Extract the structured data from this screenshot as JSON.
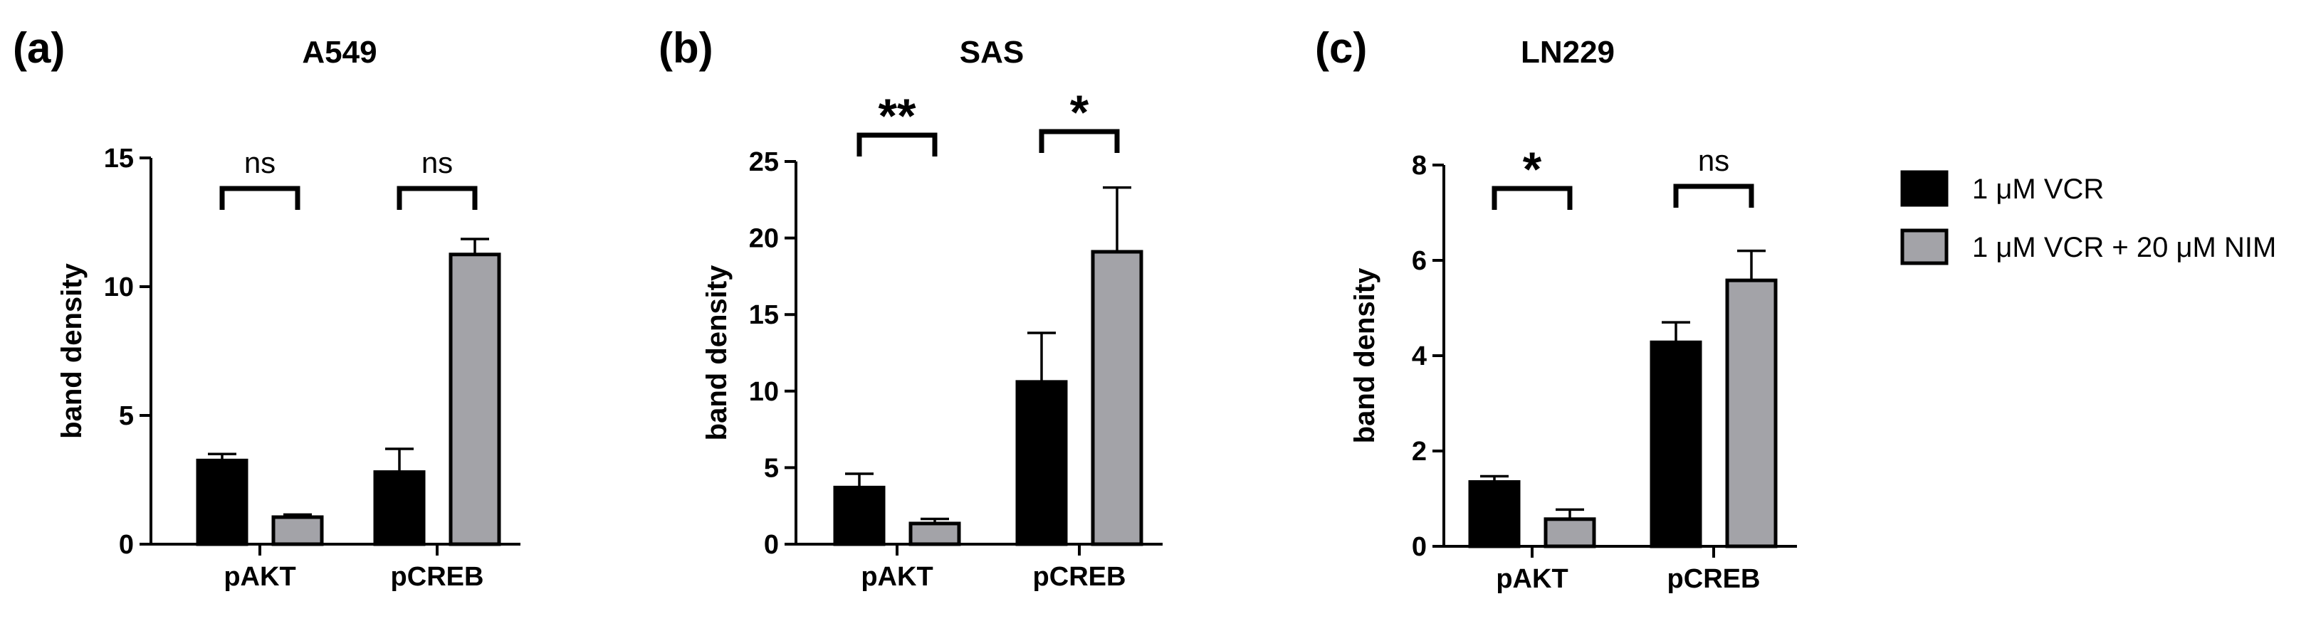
{
  "legend": [
    {
      "label": "1 μM VCR",
      "color": "#000000"
    },
    {
      "label": "1 μM VCR + 20 μM NIM",
      "color": "#a3a3a8"
    }
  ],
  "chart_data": [
    {
      "type": "bar",
      "panel_label": "(a)",
      "title": "A549",
      "ylabel": "band density",
      "categories": [
        "pAKT",
        "pCREB"
      ],
      "ylim": [
        0,
        15
      ],
      "yticks": [
        0,
        5,
        10,
        15
      ],
      "series": [
        {
          "name": "1 μM VCR",
          "values": [
            3.25,
            2.8
          ],
          "errors": [
            0.25,
            0.9
          ]
        },
        {
          "name": "1 μM VCR + 20 μM NIM",
          "values": [
            1.05,
            11.25
          ],
          "errors": [
            0.1,
            0.6
          ]
        }
      ],
      "significance": [
        "ns",
        "ns"
      ]
    },
    {
      "type": "bar",
      "panel_label": "(b)",
      "title": "SAS",
      "ylabel": "band density",
      "categories": [
        "pAKT",
        "pCREB"
      ],
      "ylim": [
        0,
        25
      ],
      "yticks": [
        0,
        5,
        10,
        15,
        20,
        25
      ],
      "series": [
        {
          "name": "1 μM VCR",
          "values": [
            3.7,
            10.6
          ],
          "errors": [
            0.9,
            3.2
          ]
        },
        {
          "name": "1 μM VCR + 20 μM NIM",
          "values": [
            1.35,
            19.1
          ],
          "errors": [
            0.3,
            4.2
          ]
        }
      ],
      "significance": [
        "**",
        "*"
      ]
    },
    {
      "type": "bar",
      "panel_label": "(c)",
      "title": "LN229",
      "ylabel": "band density",
      "categories": [
        "pAKT",
        "pCREB"
      ],
      "ylim": [
        0,
        8
      ],
      "yticks": [
        0,
        2,
        4,
        6,
        8
      ],
      "series": [
        {
          "name": "1 μM VCR",
          "values": [
            1.35,
            4.28
          ],
          "errors": [
            0.12,
            0.42
          ]
        },
        {
          "name": "1 μM VCR + 20 μM NIM",
          "values": [
            0.57,
            5.58
          ],
          "errors": [
            0.2,
            0.62
          ]
        }
      ],
      "significance": [
        "*",
        "ns"
      ]
    }
  ]
}
